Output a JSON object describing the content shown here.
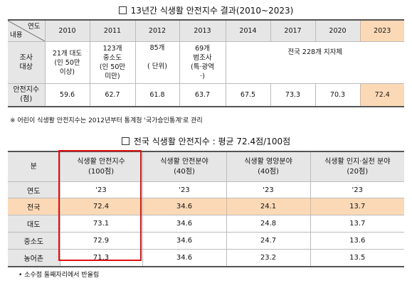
{
  "table1": {
    "title": "13년간 식생활 안전지수 결과(2010~2023)",
    "corner_top": "연도",
    "corner_bottom": "내용",
    "years": [
      "2010",
      "2011",
      "2012",
      "2013",
      "2014",
      "2017",
      "2020",
      "2023"
    ],
    "subject_label": "조사\n대상",
    "subjects": [
      "21개 대도\n(인 50만\n이상)",
      "123개\n중소도\n(인 50만\n미만)",
      "85개\n\n( 단위)",
      "69개\n범조사\n(특·광역\n·)"
    ],
    "subject_merged": "전국 228개 지자체",
    "index_label": "안전지수\n(점)",
    "index_values": [
      "59.6",
      "62.7",
      "61.8",
      "63.7",
      "67.5",
      "73.3",
      "70.3",
      "72.4"
    ],
    "note": "※ 어린이 식생활 안전지수는 2012년부터 통계청 '국가승인통계'로 관리"
  },
  "table2": {
    "title": "전국 식생활 안전지수 : 평균 72.4점/100점",
    "corner_label": "분",
    "columns": [
      "식생활 안전지수\n(100점)",
      "식생활 안전분야\n(40점)",
      "식생활 영양분야\n(40점)",
      "식생활 인지·실천 분야\n(20점)"
    ],
    "year_label": "연도",
    "year_values": [
      "'23",
      "'23",
      "'23",
      "'23"
    ],
    "rows": [
      {
        "label": "전국",
        "values": [
          "72.4",
          "34.6",
          "24.1",
          "13.7"
        ]
      },
      {
        "label": "대도",
        "values": [
          "73.1",
          "34.6",
          "24.8",
          "13.7"
        ]
      },
      {
        "label": "중소도",
        "values": [
          "72.9",
          "34.6",
          "24.7",
          "13.6"
        ]
      },
      {
        "label": "농어촌",
        "values": [
          "71.3",
          "34.6",
          "23.2",
          "13.5"
        ]
      }
    ],
    "note": "• 소수점 둘째자리에서 반올림"
  },
  "colors": {
    "highlight": "#fcd9b6",
    "header": "#e6e6e6",
    "box": "#d11111"
  }
}
